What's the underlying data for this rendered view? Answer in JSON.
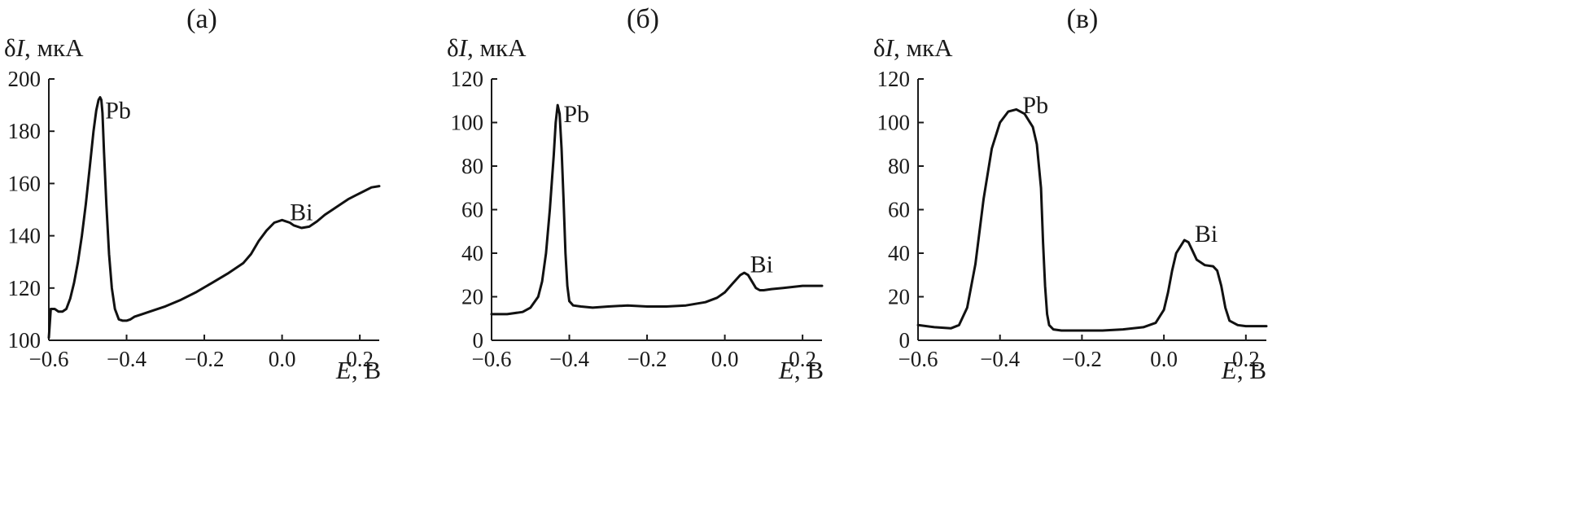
{
  "chart_data": [
    {
      "type": "line",
      "title": "(а)",
      "ylabel": "δI, мкА",
      "xlabel": "E, В",
      "xlim": [
        -0.6,
        0.25
      ],
      "ylim": [
        100,
        200
      ],
      "xticks": [
        -0.6,
        -0.4,
        -0.2,
        0.0,
        0.2
      ],
      "xtick_labels": [
        "−0.6",
        "−0.4",
        "−0.2",
        "0.0",
        "0.2"
      ],
      "yticks": [
        100,
        120,
        140,
        160,
        180,
        200
      ],
      "ytick_labels": [
        "100",
        "120",
        "140",
        "160",
        "180",
        "200"
      ],
      "grid": false,
      "annotations": [
        {
          "text": "Pb",
          "x": -0.455,
          "y": 188
        },
        {
          "text": "Bi",
          "x": 0.02,
          "y": 149
        }
      ],
      "series": [
        {
          "x": [
            -0.6,
            -0.595,
            -0.585,
            -0.575,
            -0.565,
            -0.555,
            -0.545,
            -0.535,
            -0.525,
            -0.515,
            -0.505,
            -0.495,
            -0.485,
            -0.478,
            -0.472,
            -0.468,
            -0.465,
            -0.462,
            -0.458,
            -0.452,
            -0.445,
            -0.438,
            -0.43,
            -0.42,
            -0.41,
            -0.4,
            -0.39,
            -0.38,
            -0.36,
            -0.34,
            -0.3,
            -0.26,
            -0.22,
            -0.18,
            -0.14,
            -0.1,
            -0.08,
            -0.06,
            -0.04,
            -0.02,
            0.0,
            0.01,
            0.02,
            0.03,
            0.05,
            0.07,
            0.09,
            0.11,
            0.13,
            0.15,
            0.17,
            0.19,
            0.21,
            0.23,
            0.25
          ],
          "y": [
            101,
            112,
            112,
            111,
            111,
            112,
            116,
            122,
            130,
            140,
            152,
            166,
            180,
            188,
            192,
            193,
            192,
            187,
            172,
            152,
            133,
            120,
            112,
            108,
            107.5,
            107.5,
            108,
            109,
            110,
            111,
            113,
            115.5,
            118.5,
            122,
            125.5,
            129.5,
            133,
            138,
            142,
            145,
            146,
            145.5,
            145,
            144,
            143,
            143.5,
            145.5,
            148,
            150,
            152,
            154,
            155.5,
            157,
            158.5,
            159
          ]
        }
      ]
    },
    {
      "type": "line",
      "title": "(б)",
      "ylabel": "δI, мкА",
      "xlabel": "E, В",
      "xlim": [
        -0.6,
        0.25
      ],
      "ylim": [
        0,
        120
      ],
      "xticks": [
        -0.6,
        -0.4,
        -0.2,
        0.0,
        0.2
      ],
      "xtick_labels": [
        "−0.6",
        "−0.4",
        "−0.2",
        "0.0",
        "0.2"
      ],
      "yticks": [
        0,
        20,
        40,
        60,
        80,
        100,
        120
      ],
      "ytick_labels": [
        "0",
        "20",
        "40",
        "60",
        "80",
        "100",
        "120"
      ],
      "grid": false,
      "annotations": [
        {
          "text": "Pb",
          "x": -0.415,
          "y": 104
        },
        {
          "text": "Bi",
          "x": 0.065,
          "y": 35
        }
      ],
      "series": [
        {
          "x": [
            -0.6,
            -0.56,
            -0.52,
            -0.5,
            -0.48,
            -0.47,
            -0.46,
            -0.45,
            -0.44,
            -0.435,
            -0.43,
            -0.425,
            -0.42,
            -0.415,
            -0.41,
            -0.405,
            -0.4,
            -0.39,
            -0.37,
            -0.34,
            -0.3,
            -0.25,
            -0.2,
            -0.15,
            -0.1,
            -0.05,
            -0.02,
            0.0,
            0.02,
            0.04,
            0.05,
            0.06,
            0.07,
            0.08,
            0.09,
            0.1,
            0.12,
            0.15,
            0.2,
            0.25
          ],
          "y": [
            12,
            12,
            13,
            15,
            20,
            27,
            40,
            60,
            85,
            100,
            108,
            104,
            88,
            65,
            40,
            25,
            18,
            16,
            15.5,
            15,
            15.5,
            16,
            15.5,
            15.5,
            16,
            17.5,
            19.5,
            22,
            26,
            30,
            31,
            30,
            27,
            24,
            23,
            23,
            23.5,
            24,
            25,
            25
          ]
        }
      ]
    },
    {
      "type": "line",
      "title": "(в)",
      "ylabel": "δI, мкА",
      "xlabel": "E, В",
      "xlim": [
        -0.6,
        0.25
      ],
      "ylim": [
        0,
        120
      ],
      "xticks": [
        -0.6,
        -0.4,
        -0.2,
        0.0,
        0.2
      ],
      "xtick_labels": [
        "−0.6",
        "−0.4",
        "−0.2",
        "0.0",
        "0.2"
      ],
      "yticks": [
        0,
        20,
        40,
        60,
        80,
        100,
        120
      ],
      "ytick_labels": [
        "0",
        "20",
        "40",
        "60",
        "80",
        "100",
        "120"
      ],
      "grid": false,
      "annotations": [
        {
          "text": "Pb",
          "x": -0.345,
          "y": 108
        },
        {
          "text": "Bi",
          "x": 0.075,
          "y": 49
        }
      ],
      "series": [
        {
          "x": [
            -0.6,
            -0.56,
            -0.52,
            -0.5,
            -0.48,
            -0.46,
            -0.44,
            -0.42,
            -0.4,
            -0.38,
            -0.36,
            -0.34,
            -0.32,
            -0.31,
            -0.3,
            -0.295,
            -0.29,
            -0.285,
            -0.28,
            -0.27,
            -0.25,
            -0.2,
            -0.15,
            -0.1,
            -0.05,
            -0.02,
            0.0,
            0.01,
            0.02,
            0.03,
            0.05,
            0.06,
            0.07,
            0.08,
            0.1,
            0.12,
            0.13,
            0.14,
            0.15,
            0.16,
            0.18,
            0.2,
            0.25
          ],
          "y": [
            7,
            6,
            5.5,
            7,
            15,
            35,
            65,
            88,
            100,
            105,
            106,
            104,
            98,
            90,
            70,
            45,
            25,
            12,
            7,
            5,
            4.5,
            4.5,
            4.5,
            5,
            6,
            8,
            14,
            22,
            32,
            40,
            46,
            45,
            41,
            37,
            34.5,
            34,
            32,
            25,
            15,
            9,
            7,
            6.5,
            6.5
          ]
        }
      ]
    }
  ]
}
